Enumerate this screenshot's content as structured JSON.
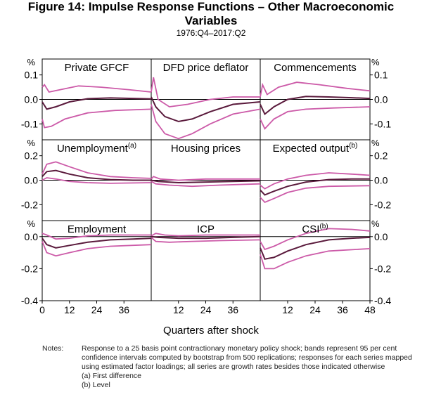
{
  "title_line1": "Figure 14: Impulse Response Functions – Other Macroeconomic",
  "title_line2": "Variables",
  "subtitle": "1976:Q4–2017:Q2",
  "xlabel": "Quarters after shock",
  "unit_label": "%",
  "notes": {
    "label": "Notes:",
    "text": "Response to a 25 basis point contractionary monetary policy shock; bands represent 95 per cent confidence intervals computed by bootstrap from 500 replications; responses for each series mapped using estimated factor loadings; all series are growth rates besides those indicated otherwise",
    "footnote_a": "(a) First difference",
    "footnote_b": "(b) Level"
  },
  "colors": {
    "point_estimate": "#5a1a3c",
    "confidence_band": "#cc5aa8",
    "axis": "#000000"
  },
  "chart_data": {
    "type": "line",
    "x_range": [
      0,
      48
    ],
    "row_left_ticks": [
      [
        "0.1",
        "0.0",
        "-0.1"
      ],
      [
        "0.2",
        "0.0",
        "-0.2"
      ],
      [
        "0.0",
        "-0.2",
        "-0.4"
      ]
    ],
    "row_right_ticks": [
      [
        "0.1",
        "0.0",
        "-0.1"
      ],
      [
        "0.2",
        "0.0",
        "-0.2"
      ],
      [
        "0.0",
        "-0.2",
        "-0.4"
      ]
    ],
    "row_ylim": [
      [
        -0.165,
        0.165
      ],
      [
        -0.33,
        0.33
      ],
      [
        -0.4,
        0.1
      ]
    ],
    "x_tick_labels_bottom": [
      [
        "0",
        "12",
        "24",
        "36"
      ],
      [
        "12",
        "24",
        "36"
      ],
      [
        "12",
        "24",
        "36",
        "48"
      ]
    ],
    "panels": [
      {
        "title": "Private GFCF",
        "estimate": [
          [
            0,
            -0.01
          ],
          [
            2,
            -0.04
          ],
          [
            6,
            -0.03
          ],
          [
            12,
            -0.01
          ],
          [
            20,
            0.003
          ],
          [
            30,
            0.006
          ],
          [
            40,
            0.004
          ],
          [
            48,
            0.002
          ]
        ],
        "upper": [
          [
            0,
            0.05
          ],
          [
            1,
            0.06
          ],
          [
            3,
            0.03
          ],
          [
            8,
            0.04
          ],
          [
            16,
            0.055
          ],
          [
            26,
            0.05
          ],
          [
            38,
            0.04
          ],
          [
            48,
            0.03
          ]
        ],
        "lower": [
          [
            0,
            -0.08
          ],
          [
            1,
            -0.115
          ],
          [
            4,
            -0.11
          ],
          [
            10,
            -0.08
          ],
          [
            20,
            -0.055
          ],
          [
            32,
            -0.045
          ],
          [
            48,
            -0.04
          ]
        ]
      },
      {
        "title": "DFD price deflator",
        "estimate": [
          [
            0,
            0.01
          ],
          [
            2,
            -0.03
          ],
          [
            6,
            -0.07
          ],
          [
            12,
            -0.09
          ],
          [
            18,
            -0.08
          ],
          [
            26,
            -0.05
          ],
          [
            36,
            -0.02
          ],
          [
            48,
            -0.01
          ]
        ],
        "upper": [
          [
            0,
            0.03
          ],
          [
            1,
            0.09
          ],
          [
            3,
            0.0
          ],
          [
            8,
            -0.03
          ],
          [
            16,
            -0.02
          ],
          [
            26,
            0.0
          ],
          [
            36,
            0.01
          ],
          [
            48,
            0.01
          ]
        ],
        "lower": [
          [
            0,
            -0.02
          ],
          [
            2,
            -0.09
          ],
          [
            6,
            -0.14
          ],
          [
            12,
            -0.16
          ],
          [
            18,
            -0.14
          ],
          [
            26,
            -0.1
          ],
          [
            36,
            -0.06
          ],
          [
            48,
            -0.04
          ]
        ]
      },
      {
        "title": "Commencements",
        "estimate": [
          [
            0,
            -0.02
          ],
          [
            2,
            -0.06
          ],
          [
            6,
            -0.03
          ],
          [
            12,
            0.0
          ],
          [
            20,
            0.012
          ],
          [
            30,
            0.01
          ],
          [
            40,
            0.007
          ],
          [
            48,
            0.004
          ]
        ],
        "upper": [
          [
            0,
            0.01
          ],
          [
            1,
            0.06
          ],
          [
            3,
            0.02
          ],
          [
            8,
            0.05
          ],
          [
            16,
            0.07
          ],
          [
            26,
            0.06
          ],
          [
            38,
            0.045
          ],
          [
            48,
            0.035
          ]
        ],
        "lower": [
          [
            0,
            -0.08
          ],
          [
            2,
            -0.12
          ],
          [
            6,
            -0.08
          ],
          [
            12,
            -0.05
          ],
          [
            20,
            -0.04
          ],
          [
            32,
            -0.035
          ],
          [
            48,
            -0.03
          ]
        ]
      },
      {
        "title": "Unemployment",
        "title_sup": "(a)",
        "estimate": [
          [
            0,
            0.03
          ],
          [
            2,
            0.07
          ],
          [
            6,
            0.08
          ],
          [
            12,
            0.05
          ],
          [
            20,
            0.02
          ],
          [
            30,
            0.005
          ],
          [
            40,
            0.0
          ],
          [
            48,
            0.0
          ]
        ],
        "upper": [
          [
            0,
            0.05
          ],
          [
            2,
            0.13
          ],
          [
            6,
            0.15
          ],
          [
            12,
            0.11
          ],
          [
            20,
            0.06
          ],
          [
            30,
            0.03
          ],
          [
            40,
            0.02
          ],
          [
            48,
            0.015
          ]
        ],
        "lower": [
          [
            0,
            0.0
          ],
          [
            2,
            0.02
          ],
          [
            6,
            0.01
          ],
          [
            12,
            -0.01
          ],
          [
            20,
            -0.02
          ],
          [
            30,
            -0.025
          ],
          [
            48,
            -0.02
          ]
        ]
      },
      {
        "title": "Housing prices",
        "estimate": [
          [
            0,
            0.0
          ],
          [
            3,
            -0.01
          ],
          [
            12,
            -0.02
          ],
          [
            24,
            -0.015
          ],
          [
            36,
            -0.01
          ],
          [
            48,
            -0.005
          ]
        ],
        "upper": [
          [
            0,
            0.01
          ],
          [
            1,
            0.03
          ],
          [
            4,
            0.01
          ],
          [
            12,
            0.0
          ],
          [
            24,
            0.01
          ],
          [
            36,
            0.01
          ],
          [
            48,
            0.01
          ]
        ],
        "lower": [
          [
            0,
            -0.01
          ],
          [
            2,
            -0.03
          ],
          [
            8,
            -0.04
          ],
          [
            18,
            -0.05
          ],
          [
            30,
            -0.04
          ],
          [
            48,
            -0.03
          ]
        ]
      },
      {
        "title": "Expected output",
        "title_sup": "(b)",
        "estimate": [
          [
            0,
            -0.08
          ],
          [
            2,
            -0.12
          ],
          [
            6,
            -0.09
          ],
          [
            12,
            -0.05
          ],
          [
            20,
            -0.015
          ],
          [
            30,
            0.005
          ],
          [
            40,
            0.01
          ],
          [
            48,
            0.01
          ]
        ],
        "upper": [
          [
            0,
            -0.04
          ],
          [
            2,
            -0.07
          ],
          [
            6,
            -0.03
          ],
          [
            12,
            0.01
          ],
          [
            20,
            0.04
          ],
          [
            30,
            0.06
          ],
          [
            40,
            0.05
          ],
          [
            48,
            0.04
          ]
        ],
        "lower": [
          [
            0,
            -0.14
          ],
          [
            2,
            -0.18
          ],
          [
            6,
            -0.15
          ],
          [
            12,
            -0.1
          ],
          [
            20,
            -0.065
          ],
          [
            30,
            -0.05
          ],
          [
            48,
            -0.045
          ]
        ]
      },
      {
        "title": "Employment",
        "estimate": [
          [
            0,
            -0.01
          ],
          [
            2,
            -0.05
          ],
          [
            6,
            -0.07
          ],
          [
            12,
            -0.055
          ],
          [
            20,
            -0.035
          ],
          [
            30,
            -0.02
          ],
          [
            40,
            -0.015
          ],
          [
            48,
            -0.01
          ]
        ],
        "upper": [
          [
            0,
            0.02
          ],
          [
            2,
            0.01
          ],
          [
            6,
            -0.015
          ],
          [
            12,
            -0.01
          ],
          [
            20,
            0.005
          ],
          [
            30,
            0.01
          ],
          [
            40,
            0.01
          ],
          [
            48,
            0.01
          ]
        ],
        "lower": [
          [
            0,
            -0.03
          ],
          [
            2,
            -0.1
          ],
          [
            6,
            -0.12
          ],
          [
            12,
            -0.1
          ],
          [
            20,
            -0.075
          ],
          [
            30,
            -0.06
          ],
          [
            48,
            -0.05
          ]
        ]
      },
      {
        "title": "ICP",
        "estimate": [
          [
            0,
            0.0
          ],
          [
            3,
            -0.005
          ],
          [
            12,
            -0.01
          ],
          [
            24,
            -0.01
          ],
          [
            36,
            -0.005
          ],
          [
            48,
            0.0
          ]
        ],
        "upper": [
          [
            0,
            0.005
          ],
          [
            2,
            0.02
          ],
          [
            6,
            0.01
          ],
          [
            12,
            0.005
          ],
          [
            24,
            0.01
          ],
          [
            36,
            0.01
          ],
          [
            48,
            0.01
          ]
        ],
        "lower": [
          [
            0,
            -0.005
          ],
          [
            2,
            -0.03
          ],
          [
            8,
            -0.035
          ],
          [
            18,
            -0.03
          ],
          [
            30,
            -0.025
          ],
          [
            48,
            -0.02
          ]
        ]
      },
      {
        "title": "CSI",
        "title_sup": "(b)",
        "estimate": [
          [
            0,
            -0.07
          ],
          [
            2,
            -0.14
          ],
          [
            6,
            -0.13
          ],
          [
            12,
            -0.09
          ],
          [
            20,
            -0.05
          ],
          [
            30,
            -0.02
          ],
          [
            40,
            -0.01
          ],
          [
            48,
            -0.005
          ]
        ],
        "upper": [
          [
            0,
            -0.03
          ],
          [
            2,
            -0.08
          ],
          [
            6,
            -0.06
          ],
          [
            12,
            -0.02
          ],
          [
            20,
            0.02
          ],
          [
            30,
            0.05
          ],
          [
            40,
            0.045
          ],
          [
            48,
            0.035
          ]
        ],
        "lower": [
          [
            0,
            -0.11
          ],
          [
            2,
            -0.2
          ],
          [
            6,
            -0.2
          ],
          [
            12,
            -0.16
          ],
          [
            20,
            -0.12
          ],
          [
            30,
            -0.09
          ],
          [
            48,
            -0.075
          ]
        ]
      }
    ]
  }
}
